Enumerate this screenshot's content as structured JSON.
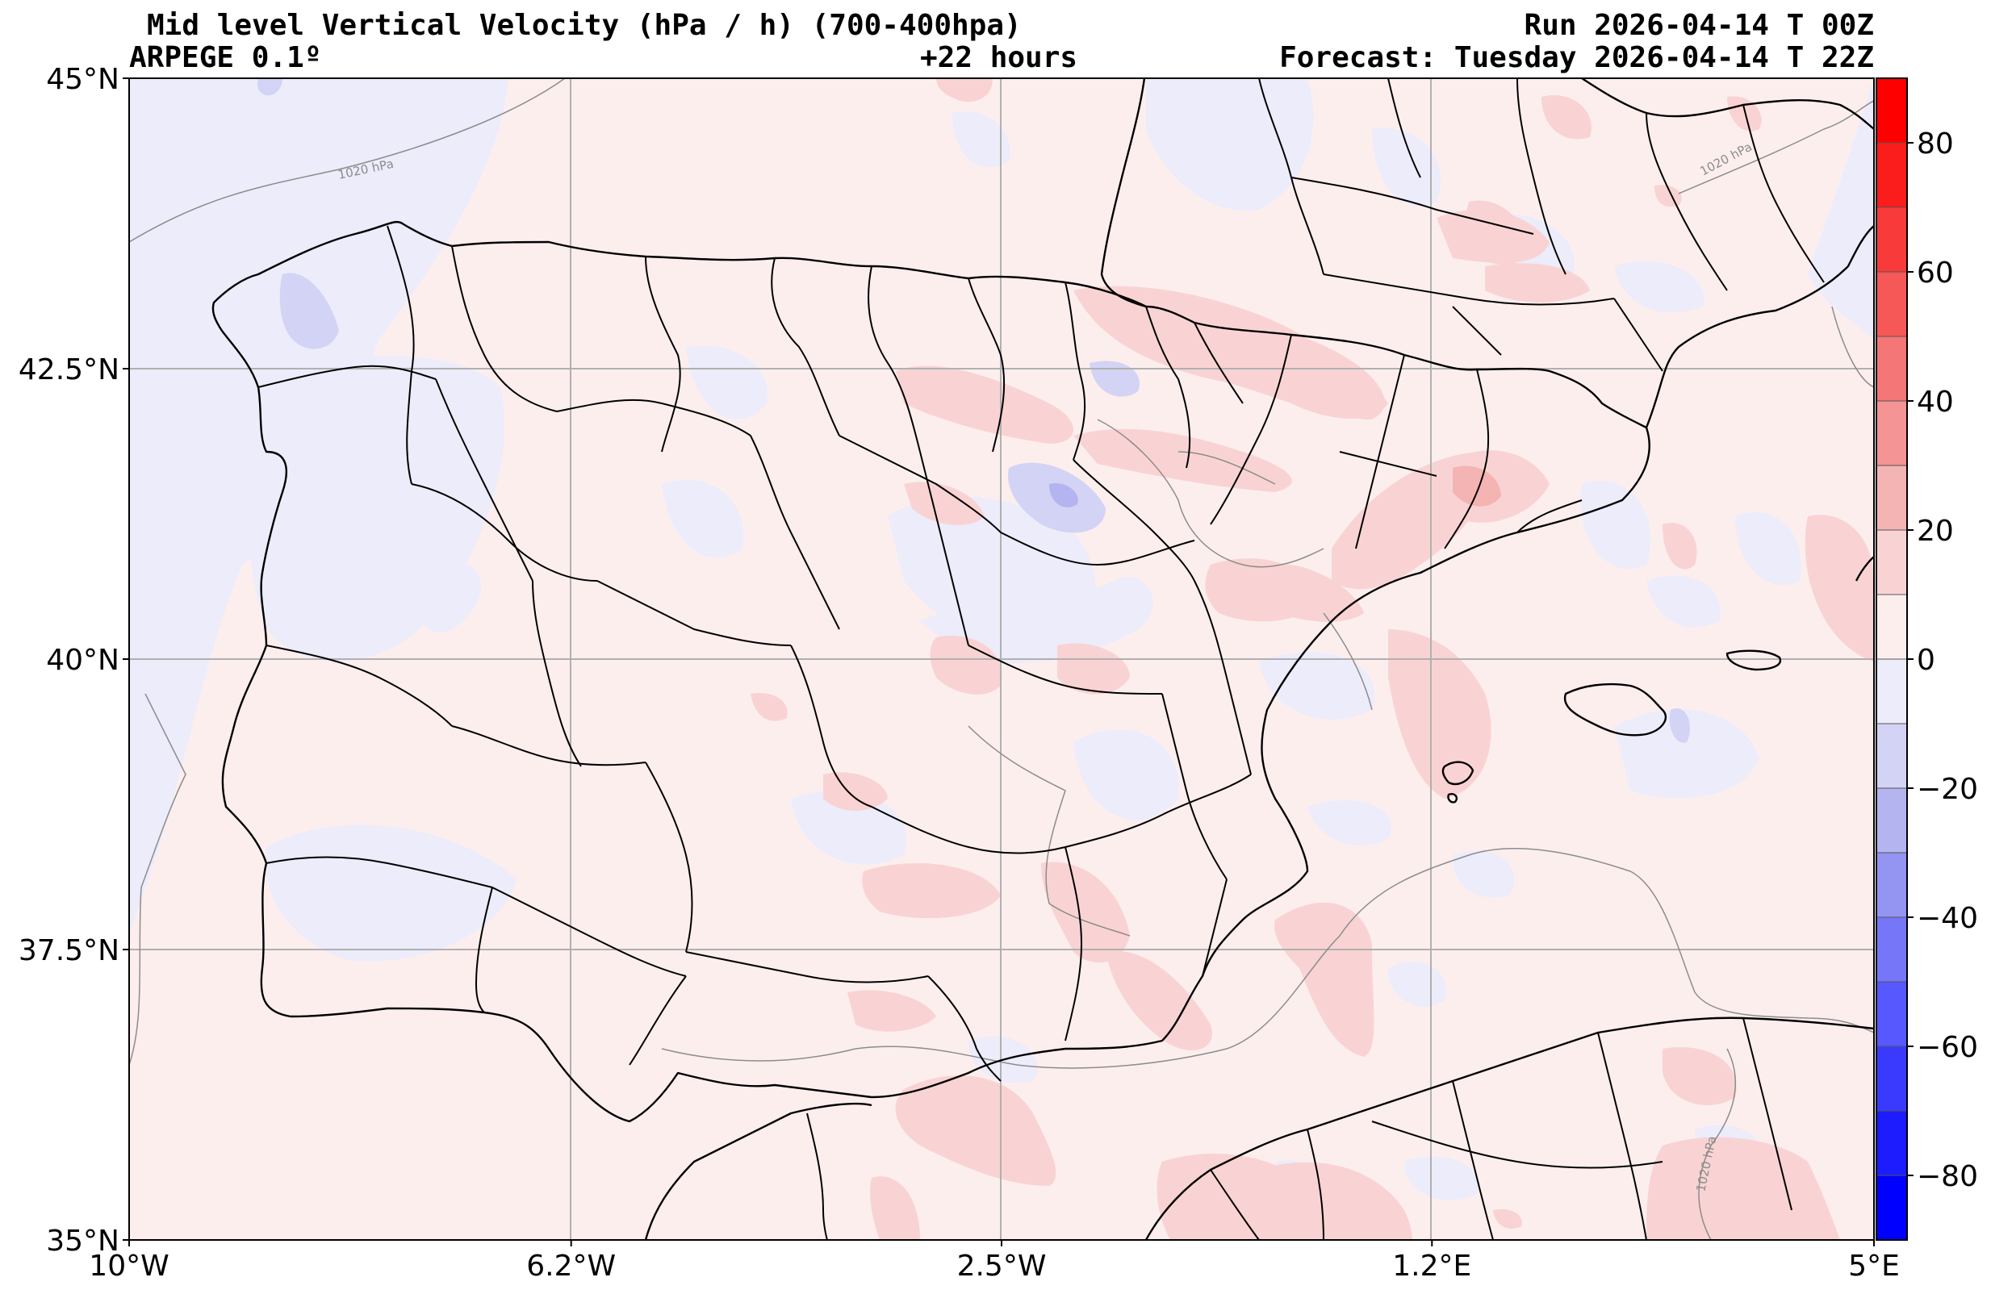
{
  "header": {
    "title": "Mid level Vertical Velocity (hPa / h)  (700-400hpa)",
    "run": "Run 2026-04-14 T 00Z",
    "model": "ARPEGE 0.1º",
    "lead": "+22 hours",
    "forecast": "Forecast: Tuesday 2026-04-14 T 22Z"
  },
  "map": {
    "lon_range": [
      -10,
      5
    ],
    "lat_range": [
      35,
      45
    ],
    "lon_ticks": [
      {
        "value": -10,
        "label": "10°W"
      },
      {
        "value": -6.2,
        "label": "6.2°W"
      },
      {
        "value": -2.5,
        "label": "2.5°W"
      },
      {
        "value": 1.2,
        "label": "1.2°E"
      },
      {
        "value": 5,
        "label": "5°E"
      }
    ],
    "lat_ticks": [
      {
        "value": 45,
        "label": "45°N"
      },
      {
        "value": 42.5,
        "label": "42.5°N"
      },
      {
        "value": 40,
        "label": "40°N"
      },
      {
        "value": 37.5,
        "label": "37.5°N"
      },
      {
        "value": 35,
        "label": "35°N"
      }
    ],
    "grid": true,
    "colors": {
      "ocean_field": "#fdeeee",
      "near_zero_negative": "#ececfb",
      "weak_positive": "#f9d3d3",
      "moderate_positive": "#f5b4b4",
      "weak_negative": "#d3d3f5",
      "moderate_negative": "#b4b4f0",
      "coast": "#000000",
      "grid": "#b0b0b0",
      "isobar": "#8c8c8c"
    },
    "isobar_labels": [
      {
        "text": "1020 hPa",
        "lon": -8.2,
        "lat": 44.1
      },
      {
        "text": "1020 hPa",
        "lon": 3.2,
        "lat": 44.2
      },
      {
        "text": "1020 hPa",
        "lon": 3.3,
        "lat": 35.8
      }
    ]
  },
  "colorbar": {
    "range": [
      -90,
      90
    ],
    "tick_values": [
      80,
      60,
      40,
      20,
      0,
      -20,
      -40,
      -60,
      -80
    ],
    "tick_labels": [
      "80",
      "60",
      "40",
      "20",
      "0",
      "−20",
      "−40",
      "−60",
      "−80"
    ],
    "levels": [
      -90,
      -80,
      -70,
      -60,
      -50,
      -40,
      -30,
      -20,
      -10,
      0,
      10,
      20,
      30,
      40,
      50,
      60,
      70,
      80,
      90
    ],
    "colors": [
      "#0000ff",
      "#1c1cff",
      "#3a3aff",
      "#5858ff",
      "#7676f8",
      "#9494f2",
      "#b4b4f0",
      "#d3d3f5",
      "#ececfb",
      "#fdeeee",
      "#f9d3d3",
      "#f5b4b4",
      "#f49494",
      "#f47676",
      "#f65858",
      "#f83a3a",
      "#fb1c1c",
      "#ff0000"
    ]
  }
}
